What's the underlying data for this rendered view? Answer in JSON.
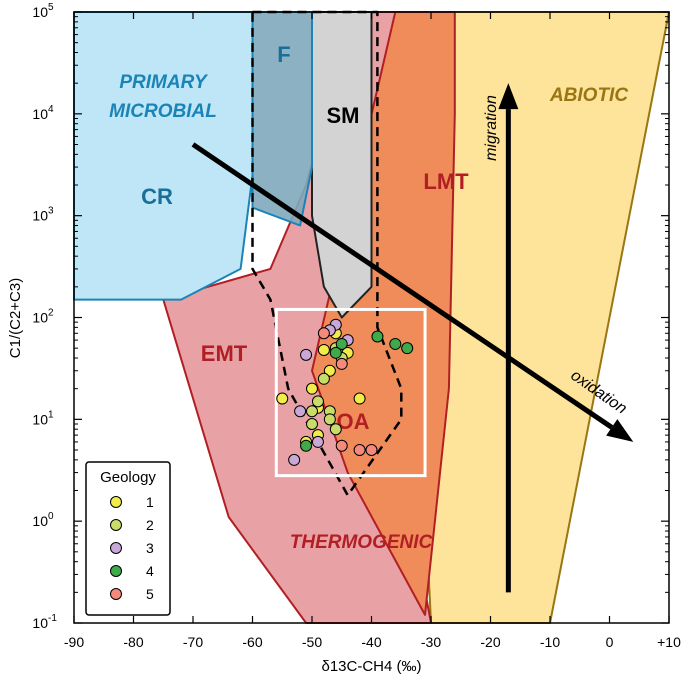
{
  "chart_data": {
    "type": "scatter",
    "xlabel": "δ13C-CH4 (‰)",
    "ylabel": "C1/(C2+C3)",
    "xlim": [
      -90,
      10
    ],
    "ylim_log10": [
      -1,
      5
    ],
    "y_scale": "log",
    "x_ticks": [
      "-90",
      "-80",
      "-70",
      "-60",
      "-50",
      "-40",
      "-30",
      "-20",
      "-10",
      "0",
      "+10"
    ],
    "y_ticks": [
      {
        "base": "10",
        "exp": "-1"
      },
      {
        "base": "10",
        "exp": "0"
      },
      {
        "base": "10",
        "exp": "1"
      },
      {
        "base": "10",
        "exp": "2"
      },
      {
        "base": "10",
        "exp": "3"
      },
      {
        "base": "10",
        "exp": "4"
      },
      {
        "base": "10",
        "exp": "5"
      }
    ],
    "grid": false,
    "legend": {
      "title": "Geology",
      "placement": "bottom-left",
      "entries": [
        {
          "label": "1",
          "color": "#f2ec4a"
        },
        {
          "label": "2",
          "color": "#c9dc6a"
        },
        {
          "label": "3",
          "color": "#c9a8d8"
        },
        {
          "label": "4",
          "color": "#3faa4a"
        },
        {
          "label": "5",
          "color": "#f58a7c"
        }
      ]
    },
    "region_labels": {
      "primary_microbial_1": "PRIMARY",
      "primary_microbial_2": "MICROBIAL",
      "cr": "CR",
      "f": "F",
      "sm": "SM",
      "lmt": "LMT",
      "emt": "EMT",
      "oa": "OA",
      "thermogenic": "THERMOGENIC",
      "abiotic": "ABIOTIC"
    },
    "arrow_labels": {
      "migration": "migration",
      "oxidation": "oxidation"
    },
    "regions": [
      {
        "id": "abiotic",
        "fill": "#fde49a",
        "stroke": "#9a7512",
        "points": [
          [
            -35,
            100000
          ],
          [
            10,
            100000
          ],
          [
            -10,
            0.1
          ],
          [
            -30,
            0.1
          ]
        ]
      },
      {
        "id": "emt",
        "fill": "#e8a2a5",
        "stroke": "#b11f24",
        "points": [
          [
            -57,
            300
          ],
          [
            -51,
            2000
          ],
          [
            -43,
            100000
          ],
          [
            -36,
            100000
          ],
          [
            -39,
            1200
          ],
          [
            -40,
            150
          ],
          [
            -30,
            0.1
          ],
          [
            -51,
            0.1
          ],
          [
            -64,
            1.1
          ],
          [
            -75,
            150
          ]
        ]
      },
      {
        "id": "lmt",
        "fill": "#ef8c5a",
        "stroke": "#b11f24",
        "points": [
          [
            -36,
            100000
          ],
          [
            -29,
            100000
          ],
          [
            -29,
            100000
          ],
          [
            -26,
            100000
          ],
          [
            -26,
            10000
          ],
          [
            -27,
            20
          ],
          [
            -31,
            0.12
          ],
          [
            -44,
            3
          ],
          [
            -50,
            30
          ]
        ]
      },
      {
        "id": "sm",
        "fill": "#d3d3d3",
        "stroke": "#222222",
        "points": [
          [
            -50,
            100000
          ],
          [
            -40,
            100000
          ],
          [
            -40,
            200
          ],
          [
            -45,
            100
          ],
          [
            -48,
            200
          ],
          [
            -50,
            1000
          ]
        ]
      },
      {
        "id": "cr",
        "fill": "#bfe6f7",
        "stroke": "#1a84b8",
        "points": [
          [
            -90,
            150
          ],
          [
            -90,
            100000
          ],
          [
            -60,
            100000
          ],
          [
            -60,
            2500
          ],
          [
            -62,
            300
          ],
          [
            -72,
            150
          ]
        ]
      },
      {
        "id": "f",
        "fill": "#7fa9bd",
        "stroke": "#1a84b8",
        "points": [
          [
            -60,
            100000
          ],
          [
            -50,
            100000
          ],
          [
            -50,
            3000
          ],
          [
            -52,
            800
          ],
          [
            -60,
            1200
          ]
        ]
      },
      {
        "id": "oa",
        "fill": "none",
        "stroke": "#000000",
        "dashed": true,
        "points": [
          [
            -60,
            100000
          ],
          [
            -39,
            100000
          ],
          [
            -39,
            80
          ],
          [
            -35,
            20
          ],
          [
            -35,
            10
          ],
          [
            -44,
            1.8
          ],
          [
            -54,
            20
          ],
          [
            -57,
            150
          ],
          [
            -60,
            300
          ]
        ]
      }
    ],
    "points": [
      {
        "geology": "1",
        "x": -55,
        "y": 16
      },
      {
        "geology": "1",
        "x": -50,
        "y": 20
      },
      {
        "geology": "1",
        "x": -49,
        "y": 13
      },
      {
        "geology": "1",
        "x": -48,
        "y": 48
      },
      {
        "geology": "1",
        "x": -47,
        "y": 30
      },
      {
        "geology": "1",
        "x": -46,
        "y": 70
      },
      {
        "geology": "1",
        "x": -44,
        "y": 45
      },
      {
        "geology": "1",
        "x": -42,
        "y": 16
      },
      {
        "geology": "1",
        "x": -51,
        "y": 6
      },
      {
        "geology": "1",
        "x": -49,
        "y": 7
      },
      {
        "geology": "2",
        "x": -50,
        "y": 12
      },
      {
        "geology": "2",
        "x": -49,
        "y": 15
      },
      {
        "geology": "2",
        "x": -47,
        "y": 12
      },
      {
        "geology": "2",
        "x": -48,
        "y": 25
      },
      {
        "geology": "2",
        "x": -46,
        "y": 50
      },
      {
        "geology": "2",
        "x": -45,
        "y": 40
      },
      {
        "geology": "2",
        "x": -47,
        "y": 10
      },
      {
        "geology": "2",
        "x": -46,
        "y": 8
      },
      {
        "geology": "2",
        "x": -50,
        "y": 9
      },
      {
        "geology": "3",
        "x": -52,
        "y": 12
      },
      {
        "geology": "3",
        "x": -51,
        "y": 43
      },
      {
        "geology": "3",
        "x": -46,
        "y": 85
      },
      {
        "geology": "3",
        "x": -47,
        "y": 75
      },
      {
        "geology": "3",
        "x": -44,
        "y": 60
      },
      {
        "geology": "3",
        "x": -53,
        "y": 4
      },
      {
        "geology": "3",
        "x": -49,
        "y": 6
      },
      {
        "geology": "4",
        "x": -39,
        "y": 65
      },
      {
        "geology": "4",
        "x": -36,
        "y": 55
      },
      {
        "geology": "4",
        "x": -34,
        "y": 50
      },
      {
        "geology": "4",
        "x": -45,
        "y": 55
      },
      {
        "geology": "4",
        "x": -46,
        "y": 45
      },
      {
        "geology": "4",
        "x": -51,
        "y": 5.5
      },
      {
        "geology": "5",
        "x": -45,
        "y": 35
      },
      {
        "geology": "5",
        "x": -42,
        "y": 5
      },
      {
        "geology": "5",
        "x": -40,
        "y": 5
      },
      {
        "geology": "5",
        "x": -45,
        "y": 5.5
      },
      {
        "geology": "5",
        "x": -48,
        "y": 70
      }
    ],
    "arrows": [
      {
        "id": "migration",
        "from": [
          -17,
          0.2
        ],
        "to": [
          -17,
          20000
        ]
      },
      {
        "id": "oxidation",
        "from": [
          -70,
          5000
        ],
        "to": [
          4,
          6
        ]
      }
    ],
    "box": {
      "x": [
        -56,
        -31
      ],
      "y": [
        2.8,
        120
      ]
    }
  }
}
